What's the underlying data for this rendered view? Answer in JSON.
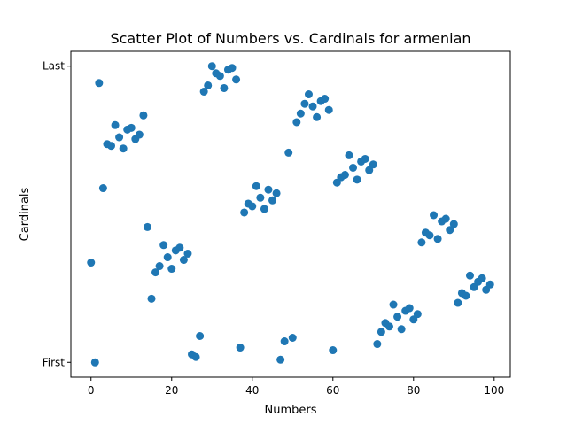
{
  "chart_data": {
    "type": "scatter",
    "title": "Scatter Plot of Numbers vs. Cardinals for armenian",
    "xlabel": "Numbers",
    "ylabel": "Cardinals",
    "xlim": [
      -5,
      104
    ],
    "ylim": [
      -0.05,
      1.05
    ],
    "x_ticks": [
      {
        "value": 0,
        "label": "0"
      },
      {
        "value": 20,
        "label": "20"
      },
      {
        "value": 40,
        "label": "40"
      },
      {
        "value": 60,
        "label": "60"
      },
      {
        "value": 80,
        "label": "80"
      },
      {
        "value": 100,
        "label": "100"
      }
    ],
    "y_ticks": [
      {
        "value": 0,
        "label": "First"
      },
      {
        "value": 1,
        "label": "Last"
      }
    ],
    "marker_color": "#1f77b4",
    "grid": false,
    "points": [
      [
        0,
        0.337
      ],
      [
        1,
        0.0
      ],
      [
        2,
        0.943
      ],
      [
        3,
        0.588
      ],
      [
        4,
        0.737
      ],
      [
        5,
        0.731
      ],
      [
        6,
        0.801
      ],
      [
        7,
        0.76
      ],
      [
        8,
        0.722
      ],
      [
        9,
        0.786
      ],
      [
        10,
        0.792
      ],
      [
        11,
        0.754
      ],
      [
        12,
        0.769
      ],
      [
        13,
        0.834
      ],
      [
        14,
        0.457
      ],
      [
        15,
        0.215
      ],
      [
        16,
        0.304
      ],
      [
        17,
        0.325
      ],
      [
        18,
        0.396
      ],
      [
        19,
        0.355
      ],
      [
        20,
        0.316
      ],
      [
        21,
        0.378
      ],
      [
        22,
        0.387
      ],
      [
        23,
        0.346
      ],
      [
        24,
        0.367
      ],
      [
        25,
        0.027
      ],
      [
        26,
        0.018
      ],
      [
        27,
        0.089
      ],
      [
        28,
        0.914
      ],
      [
        29,
        0.935
      ],
      [
        30,
        1.0
      ],
      [
        31,
        0.976
      ],
      [
        32,
        0.967
      ],
      [
        33,
        0.926
      ],
      [
        34,
        0.988
      ],
      [
        35,
        0.994
      ],
      [
        36,
        0.955
      ],
      [
        37,
        0.05
      ],
      [
        38,
        0.506
      ],
      [
        39,
        0.536
      ],
      [
        40,
        0.527
      ],
      [
        41,
        0.595
      ],
      [
        42,
        0.556
      ],
      [
        43,
        0.518
      ],
      [
        44,
        0.583
      ],
      [
        45,
        0.547
      ],
      [
        46,
        0.571
      ],
      [
        47,
        0.009
      ],
      [
        48,
        0.071
      ],
      [
        49,
        0.708
      ],
      [
        50,
        0.083
      ],
      [
        51,
        0.811
      ],
      [
        52,
        0.84
      ],
      [
        53,
        0.873
      ],
      [
        54,
        0.905
      ],
      [
        55,
        0.864
      ],
      [
        56,
        0.828
      ],
      [
        57,
        0.882
      ],
      [
        58,
        0.89
      ],
      [
        59,
        0.852
      ],
      [
        60,
        0.041
      ],
      [
        61,
        0.607
      ],
      [
        62,
        0.625
      ],
      [
        63,
        0.633
      ],
      [
        64,
        0.699
      ],
      [
        65,
        0.657
      ],
      [
        66,
        0.617
      ],
      [
        67,
        0.678
      ],
      [
        68,
        0.687
      ],
      [
        69,
        0.649
      ],
      [
        70,
        0.668
      ],
      [
        71,
        0.062
      ],
      [
        72,
        0.103
      ],
      [
        73,
        0.133
      ],
      [
        74,
        0.121
      ],
      [
        75,
        0.195
      ],
      [
        76,
        0.154
      ],
      [
        77,
        0.112
      ],
      [
        78,
        0.174
      ],
      [
        79,
        0.183
      ],
      [
        80,
        0.145
      ],
      [
        81,
        0.163
      ],
      [
        82,
        0.405
      ],
      [
        83,
        0.438
      ],
      [
        84,
        0.429
      ],
      [
        85,
        0.497
      ],
      [
        86,
        0.417
      ],
      [
        87,
        0.476
      ],
      [
        88,
        0.485
      ],
      [
        89,
        0.447
      ],
      [
        90,
        0.467
      ],
      [
        91,
        0.201
      ],
      [
        92,
        0.234
      ],
      [
        93,
        0.225
      ],
      [
        94,
        0.293
      ],
      [
        95,
        0.254
      ],
      [
        96,
        0.272
      ],
      [
        97,
        0.284
      ],
      [
        98,
        0.245
      ],
      [
        99,
        0.263
      ]
    ]
  }
}
